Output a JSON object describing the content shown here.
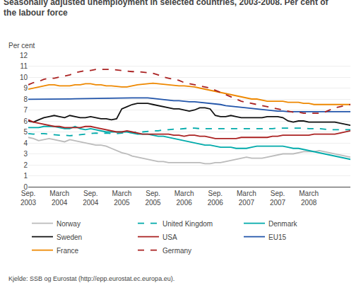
{
  "chart_data": {
    "type": "line",
    "title": "Seasonally adjusted unemployment in selected countries, 2003-2008. Per cent of\nthe labour force",
    "ylabel": "Per cent",
    "source": "Kjelde: SSB og Eurostat (http://epp.eurostat.ec.europa.eu).",
    "categories": [
      "Sep.\n2003",
      null,
      null,
      null,
      null,
      null,
      "March\n2004",
      null,
      null,
      null,
      null,
      null,
      "Sep.\n2004",
      null,
      null,
      null,
      null,
      null,
      "March\n2005",
      null,
      null,
      null,
      null,
      null,
      "Sep.\n2005",
      null,
      null,
      null,
      null,
      null,
      "March\n2006",
      null,
      null,
      null,
      null,
      null,
      "Sep.\n2006",
      null,
      null,
      null,
      null,
      null,
      "March\n2007",
      null,
      null,
      null,
      null,
      null,
      "Sep.\n2007",
      null,
      null,
      null,
      null,
      null,
      "March\n2008",
      null,
      null,
      null,
      null,
      null,
      null,
      null,
      null
    ],
    "series": [
      {
        "name": "Norway",
        "color": "#bbbbbb",
        "line_style": "solid",
        "values": [
          4.5,
          4.4,
          4.2,
          4.3,
          4.4,
          4.3,
          4.2,
          4.1,
          4.3,
          4.2,
          4.1,
          4.0,
          3.9,
          3.8,
          3.8,
          3.7,
          3.5,
          3.3,
          3.1,
          3.0,
          2.8,
          2.7,
          2.6,
          2.5,
          2.4,
          2.3,
          2.3,
          2.2,
          2.2,
          2.2,
          2.2,
          2.2,
          2.2,
          2.2,
          2.1,
          2.1,
          2.2,
          2.2,
          2.3,
          2.4,
          2.5,
          2.6,
          2.7,
          2.6,
          2.6,
          2.6,
          2.7,
          2.8,
          2.9,
          3.0,
          3.0,
          3.0,
          3.1,
          3.2,
          3.2,
          3.2,
          3.3,
          3.2,
          3.1,
          3.0,
          2.9,
          2.8,
          2.7
        ]
      },
      {
        "name": "United Kingdom",
        "color": "#00aaaa",
        "line_style": "dashed",
        "values": [
          4.85,
          4.8,
          4.85,
          4.85,
          4.8,
          4.75,
          4.7,
          4.7,
          4.65,
          4.7,
          4.75,
          4.8,
          4.85,
          4.9,
          4.85,
          4.9,
          4.85,
          4.85,
          4.9,
          4.95,
          4.95,
          5.0,
          5.0,
          5.05,
          5.1,
          5.1,
          5.2,
          5.2,
          5.25,
          5.25,
          5.3,
          5.35,
          5.35,
          5.3,
          5.3,
          5.3,
          5.3,
          5.3,
          5.3,
          5.3,
          5.3,
          5.3,
          5.3,
          5.3,
          5.3,
          5.3,
          5.3,
          5.3,
          5.35,
          5.35,
          5.35,
          5.35,
          5.35,
          5.35,
          5.3,
          5.3,
          5.3,
          5.25,
          5.2,
          5.2,
          5.2,
          5.2,
          5.2
        ]
      },
      {
        "name": "Denmark",
        "color": "#00aaaa",
        "line_style": "solid",
        "values": [
          5.4,
          5.4,
          5.4,
          5.5,
          5.5,
          5.5,
          5.4,
          5.3,
          5.3,
          5.5,
          5.3,
          5.2,
          5.3,
          5.2,
          5.1,
          5.0,
          5.0,
          5.0,
          5.0,
          5.0,
          4.9,
          4.8,
          4.8,
          4.8,
          4.7,
          4.6,
          4.6,
          4.5,
          4.4,
          4.3,
          4.2,
          4.1,
          4.0,
          3.9,
          3.8,
          3.8,
          3.7,
          3.6,
          3.6,
          3.6,
          3.5,
          3.5,
          3.5,
          3.6,
          3.7,
          3.7,
          3.7,
          3.7,
          3.7,
          3.7,
          3.6,
          3.5,
          3.5,
          3.4,
          3.3,
          3.2,
          3.1,
          3.0,
          2.9,
          2.8,
          2.7,
          2.6,
          2.5
        ]
      },
      {
        "name": "Sweden",
        "color": "#111111",
        "line_style": "solid",
        "values": [
          6.0,
          5.9,
          6.1,
          6.3,
          6.4,
          6.5,
          6.4,
          6.3,
          6.5,
          6.4,
          6.3,
          6.3,
          6.4,
          6.3,
          6.2,
          6.2,
          6.1,
          6.2,
          7.1,
          7.3,
          7.5,
          7.6,
          7.6,
          7.6,
          7.5,
          7.4,
          7.3,
          7.2,
          7.1,
          7.1,
          7.0,
          6.9,
          7.0,
          7.2,
          7.2,
          7.1,
          6.5,
          6.4,
          6.4,
          6.5,
          6.4,
          6.3,
          6.3,
          6.3,
          6.3,
          6.3,
          6.4,
          6.4,
          6.4,
          6.3,
          6.0,
          5.9,
          6.0,
          6.0,
          5.9,
          5.9,
          5.9,
          5.9,
          5.9,
          5.9,
          5.8,
          5.7,
          5.6
        ]
      },
      {
        "name": "USA",
        "color": "#aa2222",
        "line_style": "solid",
        "values": [
          6.1,
          5.9,
          5.8,
          5.7,
          5.6,
          5.5,
          5.5,
          5.4,
          5.4,
          5.4,
          5.4,
          5.5,
          5.5,
          5.4,
          5.3,
          5.2,
          5.1,
          5.0,
          5.0,
          5.1,
          5.0,
          4.9,
          4.8,
          4.8,
          4.8,
          4.8,
          4.8,
          4.8,
          4.7,
          4.7,
          4.6,
          4.7,
          4.7,
          4.6,
          4.6,
          4.5,
          4.4,
          4.4,
          4.4,
          4.4,
          4.4,
          4.5,
          4.5,
          4.5,
          4.5,
          4.5,
          4.5,
          4.6,
          4.6,
          4.7,
          4.7,
          4.7,
          4.7,
          4.7,
          4.7,
          4.8,
          4.8,
          4.8,
          4.8,
          4.8,
          4.9,
          5.0,
          5.1
        ]
      },
      {
        "name": "EU15",
        "color": "#2255aa",
        "line_style": "solid",
        "values": [
          7.97,
          7.97,
          7.98,
          8.0,
          8.0,
          8.0,
          8.0,
          8.0,
          8.01,
          8.02,
          8.03,
          8.05,
          8.07,
          8.08,
          8.08,
          8.09,
          8.1,
          8.1,
          8.1,
          8.1,
          8.1,
          8.1,
          8.1,
          8.1,
          8.05,
          8.0,
          7.95,
          7.9,
          7.85,
          7.85,
          7.8,
          7.75,
          7.75,
          7.7,
          7.65,
          7.6,
          7.55,
          7.5,
          7.4,
          7.35,
          7.3,
          7.25,
          7.2,
          7.15,
          7.1,
          7.05,
          7.0,
          6.95,
          6.9,
          6.9,
          6.85,
          6.85,
          6.85,
          6.85,
          6.85,
          6.85,
          6.85,
          6.85,
          6.85,
          6.85,
          6.85,
          6.85,
          6.85
        ]
      },
      {
        "name": "France",
        "color": "#ee8800",
        "line_style": "solid",
        "values": [
          8.9,
          9.0,
          9.1,
          9.2,
          9.3,
          9.3,
          9.2,
          9.2,
          9.2,
          9.3,
          9.3,
          9.4,
          9.4,
          9.3,
          9.3,
          9.2,
          9.2,
          9.15,
          9.1,
          9.1,
          9.2,
          9.3,
          9.35,
          9.4,
          9.45,
          9.4,
          9.35,
          9.3,
          9.25,
          9.2,
          9.2,
          9.15,
          9.1,
          9.0,
          8.9,
          8.8,
          8.7,
          8.6,
          8.5,
          8.4,
          8.3,
          8.2,
          8.1,
          8.0,
          8.0,
          7.9,
          7.8,
          7.8,
          7.8,
          7.8,
          7.7,
          7.7,
          7.7,
          7.6,
          7.6,
          7.5,
          7.5,
          7.5,
          7.5,
          7.5,
          7.5,
          7.5,
          7.5
        ]
      },
      {
        "name": "Germany",
        "color": "#aa2222",
        "line_style": "dashed",
        "values": [
          9.3,
          9.5,
          9.6,
          9.8,
          9.9,
          9.9,
          10.0,
          10.1,
          10.2,
          10.4,
          10.5,
          10.6,
          10.6,
          10.7,
          10.7,
          10.7,
          10.7,
          10.65,
          10.6,
          10.55,
          10.5,
          10.5,
          10.45,
          10.4,
          10.35,
          10.2,
          10.0,
          9.9,
          9.8,
          9.7,
          9.5,
          9.4,
          9.3,
          9.2,
          9.1,
          9.0,
          8.8,
          8.6,
          8.4,
          8.2,
          8.0,
          7.8,
          7.7,
          7.6,
          7.5,
          7.4,
          7.3,
          7.2,
          7.1,
          7.0,
          6.9,
          6.8,
          6.8,
          6.7,
          6.7,
          6.7,
          6.7,
          6.8,
          7.0,
          7.2,
          7.3,
          7.4,
          7.5
        ]
      }
    ],
    "ylim": [
      0,
      12
    ],
    "yticks": [
      0,
      1,
      2,
      3,
      4,
      5,
      6,
      7,
      8,
      9,
      10,
      11,
      12
    ],
    "grid": true,
    "legend": "bottom"
  }
}
